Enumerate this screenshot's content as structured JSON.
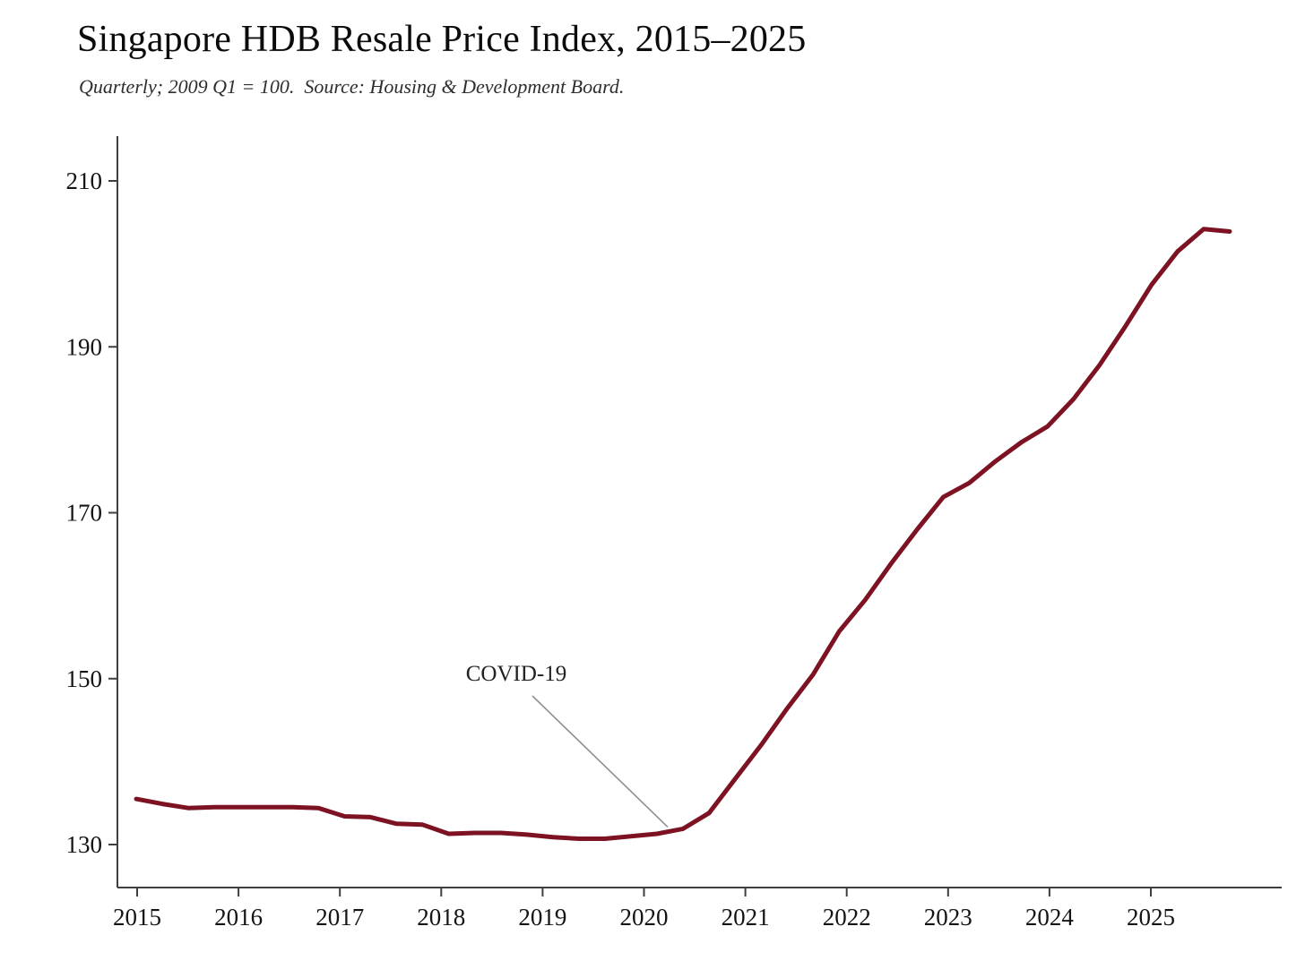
{
  "chart": {
    "title": "Singapore HDB Resale Price Index, 2015–2025",
    "subtitle": "Quarterly; 2009 Q1 = 100.  Source: Housing & Development Board.",
    "annotation": {
      "label": "COVID-19",
      "points_to": "2020 Q2"
    }
  },
  "chart_data": {
    "type": "line",
    "title": "Singapore HDB Resale Price Index, 2015–2025",
    "subtitle": "Quarterly; 2009 Q1 = 100.  Source: Housing & Development Board.",
    "xlabel": "",
    "ylabel": "",
    "legend": "none",
    "grid": false,
    "ylim_ticks": [
      130,
      210
    ],
    "y_ticks": [
      130,
      150,
      170,
      190,
      210
    ],
    "x_ticks": [
      2015,
      2016,
      2017,
      2018,
      2019,
      2020,
      2021,
      2022,
      2023,
      2024,
      2025
    ],
    "line_color": "#7d1222",
    "axis_color": "#3f3f3f",
    "annotation": {
      "label": "COVID-19",
      "points_to": "2020 Q2"
    },
    "categories": [
      "2015 Q1",
      "2015 Q2",
      "2015 Q3",
      "2015 Q4",
      "2016 Q1",
      "2016 Q2",
      "2016 Q3",
      "2016 Q4",
      "2017 Q1",
      "2017 Q2",
      "2017 Q3",
      "2017 Q4",
      "2018 Q1",
      "2018 Q2",
      "2018 Q3",
      "2018 Q4",
      "2019 Q1",
      "2019 Q2",
      "2019 Q3",
      "2019 Q4",
      "2020 Q1",
      "2020 Q2",
      "2020 Q3",
      "2020 Q4",
      "2021 Q1",
      "2021 Q2",
      "2021 Q3",
      "2021 Q4",
      "2022 Q1",
      "2022 Q2",
      "2022 Q3",
      "2022 Q4",
      "2023 Q1",
      "2023 Q2",
      "2023 Q3",
      "2023 Q4",
      "2024 Q1",
      "2024 Q2",
      "2024 Q3",
      "2024 Q4",
      "2025 Q1",
      "2025 Q2",
      "2025 Q3"
    ],
    "values": [
      135.5,
      134.9,
      134.4,
      134.5,
      134.5,
      134.5,
      134.5,
      134.4,
      133.4,
      133.3,
      132.5,
      132.4,
      131.3,
      131.4,
      131.4,
      131.2,
      130.9,
      130.7,
      130.7,
      131.0,
      131.3,
      131.9,
      133.8,
      137.9,
      142.0,
      146.4,
      150.5,
      155.7,
      159.5,
      163.9,
      168.0,
      171.9,
      173.6,
      176.2,
      178.5,
      180.4,
      183.7,
      187.8,
      192.5,
      197.5,
      201.5,
      204.2,
      203.9
    ]
  }
}
